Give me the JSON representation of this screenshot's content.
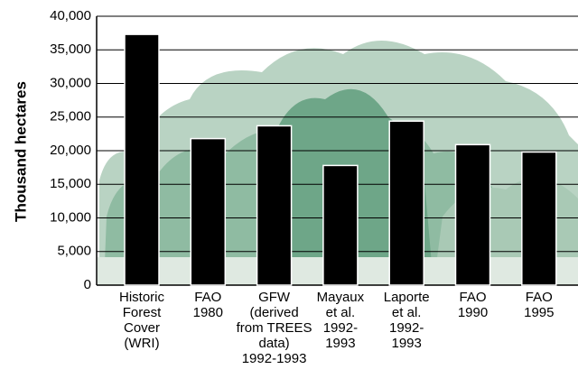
{
  "chart_data": {
    "type": "bar",
    "y_label": "Thousand hectares",
    "categories": [
      [
        "Historic",
        "Forest",
        "Cover",
        "(WRI)"
      ],
      [
        "FAO",
        "1980"
      ],
      [
        "GFW",
        "(derived",
        "from TREES",
        "data)",
        "1992-1993"
      ],
      [
        "Mayaux",
        "et al.",
        "1992-",
        "1993"
      ],
      [
        "Laporte",
        "et al.",
        "1992-",
        "1993"
      ],
      [
        "FAO",
        "1990"
      ],
      [
        "FAO",
        "1995"
      ]
    ],
    "values": [
      37300,
      21800,
      23700,
      17800,
      24400,
      20900,
      19800
    ],
    "color": "#000000",
    "ylim": [
      0,
      40000
    ],
    "yticks": [
      0,
      {
        "value": 5000,
        "label": "5,000"
      },
      {
        "value": 10000,
        "label": "10,000"
      },
      {
        "value": 15000,
        "label": "15,000"
      },
      {
        "value": 20000,
        "label": "20,000"
      },
      {
        "value": 25000,
        "label": "25,000"
      },
      {
        "value": 30000,
        "label": "30,000"
      },
      {
        "value": 35000,
        "label": "35,000"
      },
      {
        "value": 40000,
        "label": "40,000"
      }
    ],
    "grid": true
  }
}
